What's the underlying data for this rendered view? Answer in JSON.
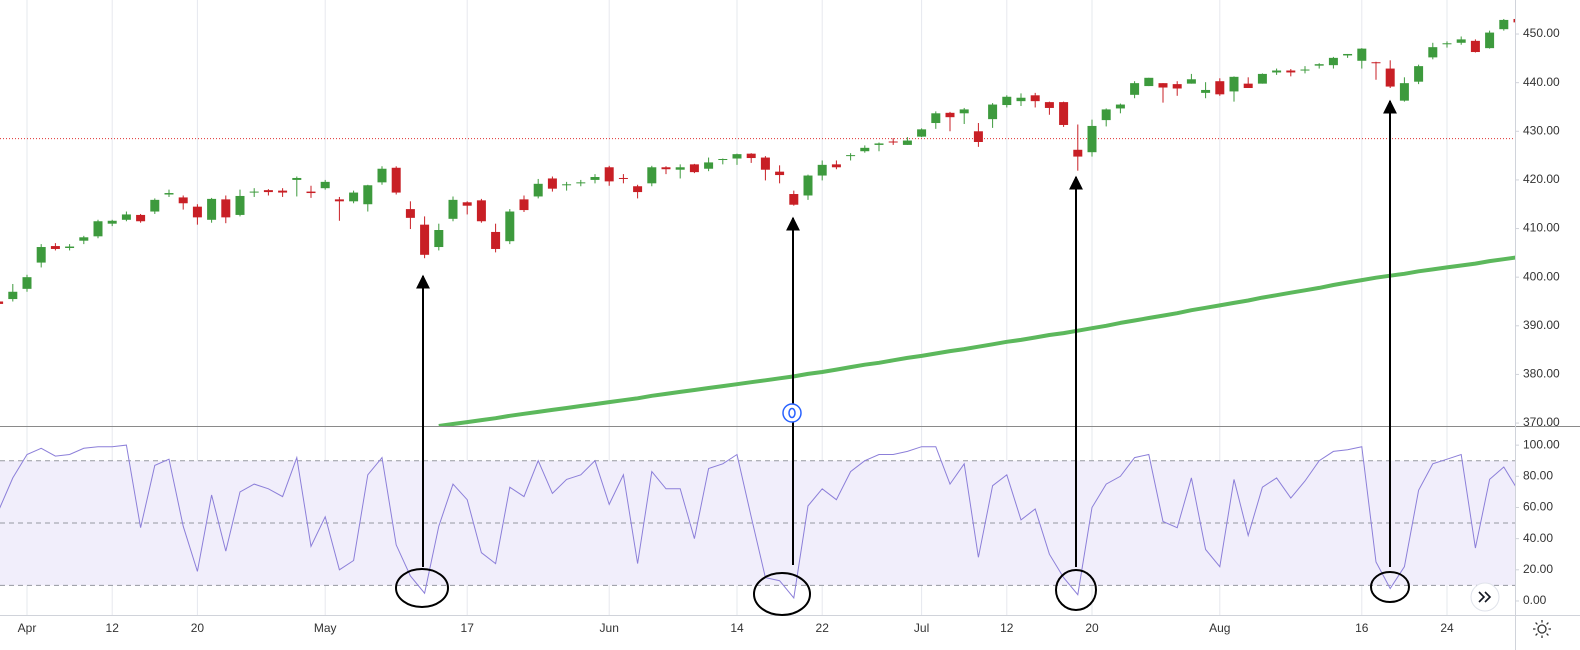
{
  "chart_data": [
    {
      "type": "candlestick",
      "categories": [
        null,
        null,
        "Apr",
        null,
        null,
        null,
        null,
        null,
        "12",
        null,
        null,
        null,
        null,
        null,
        "20",
        null,
        null,
        null,
        null,
        null,
        null,
        null,
        null,
        "May",
        null,
        null,
        null,
        null,
        null,
        null,
        null,
        null,
        null,
        "17",
        null,
        null,
        null,
        null,
        null,
        null,
        null,
        null,
        null,
        "Jun",
        null,
        null,
        null,
        null,
        null,
        null,
        null,
        null,
        "14",
        null,
        null,
        null,
        null,
        null,
        "22",
        null,
        null,
        null,
        null,
        null,
        null,
        "Jul",
        null,
        null,
        null,
        null,
        null,
        "12",
        null,
        null,
        null,
        null,
        null,
        "20",
        null,
        null,
        null,
        null,
        null,
        null,
        null,
        null,
        "Aug",
        null,
        null,
        null,
        null,
        null,
        null,
        null,
        null,
        null,
        "16",
        null,
        null,
        null,
        null,
        null,
        "24",
        null,
        null,
        null,
        null,
        null
      ],
      "open": [
        395,
        395.5,
        397.6,
        403,
        406.4,
        406,
        407.5,
        408.4,
        411,
        411.8,
        412.8,
        413.5,
        417,
        416.4,
        414.5,
        411.8,
        416,
        412.8,
        417.4,
        417.9,
        417.8,
        420,
        417.6,
        418.3,
        416,
        415.6,
        415,
        419.5,
        422.5,
        414,
        410.8,
        406.2,
        412,
        415.4,
        415.8,
        409.3,
        407.4,
        416,
        416.6,
        420.3,
        418.9,
        419.3,
        420,
        422.6,
        420.4,
        418.7,
        419.3,
        422.6,
        422.1,
        423.2,
        422.3,
        424.2,
        424.4,
        425.4,
        424.6,
        421.7,
        417.1,
        416.8,
        420.9,
        423.2,
        424.9,
        425.9,
        427.2,
        427.9,
        427.2,
        428.9,
        431.7,
        433.8,
        433.7,
        430,
        432.5,
        435.4,
        436.2,
        437.4,
        436,
        436,
        426.2,
        425.7,
        432.3,
        434.7,
        437.5,
        439.3,
        439.9,
        439.7,
        439.8,
        437.9,
        440.3,
        438.2,
        439.8,
        439.8,
        442.1,
        442.5,
        442.6,
        443.5,
        443.6,
        445.6,
        444.5,
        444.2,
        442.9,
        436.3,
        440.2,
        445.2,
        447.9,
        448.2,
        448.6,
        447.1,
        451,
        453.1
      ],
      "high": [
        395.5,
        398.6,
        400.5,
        406.8,
        407,
        406.8,
        408.5,
        411.8,
        411.8,
        413.5,
        413,
        416.2,
        418,
        416.8,
        415,
        416.3,
        416.8,
        418,
        418.3,
        418.1,
        418.3,
        420.7,
        418.8,
        420,
        416.5,
        417.8,
        419,
        422.8,
        422.8,
        415.6,
        412.5,
        411,
        416.6,
        415.6,
        416.1,
        411,
        414,
        416.8,
        420.2,
        420.7,
        419.6,
        420,
        421.2,
        422.9,
        421.2,
        419,
        422.9,
        422.8,
        423.2,
        423.3,
        424.6,
        424.4,
        425.4,
        425.5,
        424.9,
        423,
        417.8,
        421.1,
        424,
        424,
        425.5,
        427.1,
        427.7,
        428.6,
        428.8,
        430.6,
        434.1,
        434,
        434.8,
        431.7,
        435.8,
        437.4,
        437.8,
        437.9,
        436.1,
        436.1,
        431.4,
        432.4,
        434.7,
        435.7,
        440.3,
        441,
        439.9,
        440.3,
        441.8,
        440.1,
        440.9,
        441.3,
        441.1,
        441.9,
        442.9,
        442.8,
        443.4,
        444,
        445.3,
        445.9,
        447.1,
        444.3,
        444.6,
        441.1,
        443.7,
        448.2,
        448.5,
        449.5,
        448.9,
        450.7,
        453.1,
        453.2
      ],
      "low": [
        394,
        395,
        397,
        402,
        405.5,
        405.5,
        406.8,
        408,
        410.5,
        411.5,
        411.2,
        413,
        416.5,
        413.9,
        410.8,
        411.2,
        411.1,
        412.5,
        416.5,
        416.8,
        416.5,
        416.6,
        416.3,
        418,
        411.6,
        415.2,
        413.5,
        419,
        417,
        409.9,
        403.9,
        405.5,
        411.5,
        412.9,
        411.2,
        405.1,
        406.8,
        413.4,
        416.2,
        417.6,
        417.8,
        418.7,
        419.3,
        418.8,
        419.3,
        416.2,
        418.7,
        421.2,
        420.3,
        421.4,
        421.8,
        423.2,
        423.1,
        423.5,
        419.9,
        419.3,
        414.7,
        415.9,
        419.9,
        422.2,
        424,
        425.6,
        425.9,
        427.2,
        427.2,
        428.8,
        430.5,
        430,
        431.5,
        426.8,
        430.7,
        434.9,
        435.2,
        434.9,
        433.4,
        430.9,
        421.9,
        424.8,
        431,
        433.7,
        436.8,
        439.3,
        435.9,
        437.3,
        439.8,
        436.8,
        437.3,
        436.1,
        438.9,
        439.8,
        441.6,
        441.3,
        441.9,
        442.9,
        442.9,
        445.1,
        442.9,
        440.6,
        438.9,
        436.1,
        439.7,
        444.8,
        447.2,
        447.8,
        446.2,
        447,
        450.7,
        451.4
      ],
      "close": [
        394.5,
        397,
        400,
        406.2,
        405.8,
        406.3,
        408.2,
        411.5,
        411.6,
        412.9,
        411.5,
        415.9,
        417.3,
        415.2,
        412.3,
        416.1,
        412.3,
        416.7,
        417.6,
        417.5,
        417.4,
        420.4,
        417.3,
        419.6,
        415.6,
        417.4,
        418.9,
        422.3,
        417.4,
        412.2,
        404.6,
        409.7,
        415.9,
        414.7,
        411.5,
        405.8,
        413.5,
        413.8,
        419.2,
        418.2,
        419.1,
        419.5,
        420.6,
        419.7,
        420.3,
        417.5,
        422.6,
        422.2,
        422.6,
        421.6,
        423.6,
        424.3,
        425.3,
        424.5,
        422.1,
        421,
        414.9,
        420.9,
        423.1,
        422.6,
        425.1,
        426.6,
        427.5,
        427.7,
        428.1,
        430.4,
        433.7,
        432.9,
        434.5,
        427.8,
        435.5,
        437.1,
        436.9,
        436.2,
        434.8,
        431.3,
        424.8,
        431.1,
        434.5,
        435.5,
        439.9,
        441,
        439,
        438.8,
        440.7,
        438.5,
        437.6,
        441.2,
        438.9,
        441.8,
        442.5,
        442.1,
        442.7,
        443.8,
        445.1,
        445.9,
        447,
        444,
        439.2,
        439.9,
        443.4,
        447.3,
        448.1,
        448.9,
        446.3,
        450.3,
        452.9,
        452.4
      ],
      "up_color": "#3d9a3d",
      "down_color": "#c81f25",
      "overlay": {
        "type": "line",
        "color": "#5cb85c",
        "values": [
          null,
          null,
          null,
          null,
          null,
          null,
          null,
          null,
          null,
          null,
          null,
          null,
          null,
          null,
          null,
          null,
          null,
          null,
          null,
          null,
          null,
          null,
          null,
          null,
          null,
          null,
          null,
          null,
          null,
          null,
          null,
          369.4,
          369.8,
          370.2,
          370.6,
          371.0,
          371.5,
          371.9,
          372.3,
          372.7,
          373.1,
          373.5,
          373.9,
          374.3,
          374.7,
          375.1,
          375.6,
          376.0,
          376.4,
          376.8,
          377.2,
          377.6,
          378.0,
          378.4,
          378.8,
          379.2,
          379.6,
          380.1,
          380.5,
          381.0,
          381.5,
          382.0,
          382.4,
          382.9,
          383.4,
          383.8,
          384.3,
          384.8,
          385.2,
          385.7,
          386.2,
          386.7,
          387.1,
          387.6,
          388.1,
          388.5,
          389.0,
          389.5,
          390.0,
          390.6,
          391.1,
          391.6,
          392.1,
          392.6,
          393.2,
          393.7,
          394.2,
          394.7,
          395.2,
          395.8,
          396.3,
          396.8,
          397.3,
          397.8,
          398.4,
          398.9,
          399.4,
          399.9,
          400.3,
          400.7,
          401.2,
          401.6,
          402.0,
          402.4,
          402.8,
          403.3,
          403.7,
          404.1
        ]
      },
      "price_line": {
        "value": 428.5,
        "color": "#e03030"
      },
      "ylim": [
        369.6,
        457
      ],
      "yticks": [
        {
          "value": 370,
          "label": "370.00"
        },
        {
          "value": 380,
          "label": "380.00"
        },
        {
          "value": 390,
          "label": "390.00"
        },
        {
          "value": 400,
          "label": "400.00"
        },
        {
          "value": 410,
          "label": "410.00"
        },
        {
          "value": 420,
          "label": "420.00"
        },
        {
          "value": 430,
          "label": "430.00"
        },
        {
          "value": 440,
          "label": "440.00"
        },
        {
          "value": 450,
          "label": "450.00"
        }
      ]
    },
    {
      "type": "line",
      "color": "#8c7fd9",
      "values": [
        58,
        79,
        94,
        98,
        93,
        94,
        98,
        99,
        99,
        100,
        47,
        87,
        91,
        48,
        19,
        68,
        32,
        70,
        75,
        72,
        67,
        92,
        35,
        54,
        20,
        26,
        81,
        92,
        36,
        16,
        5,
        48,
        75,
        65,
        31,
        24,
        73,
        67,
        90,
        69,
        78,
        81,
        90,
        62,
        81,
        24,
        83,
        72,
        72,
        40,
        85,
        88,
        94,
        54,
        15,
        13,
        2,
        61,
        72,
        65,
        83,
        90,
        94,
        94,
        96,
        99,
        99,
        75,
        88,
        28,
        74,
        81,
        52,
        59,
        30,
        15,
        4,
        60,
        75,
        80,
        92,
        94,
        51,
        47,
        79,
        33,
        22,
        78,
        42,
        73,
        79,
        66,
        77,
        90,
        96,
        97,
        99,
        25,
        8,
        22,
        71,
        88,
        91,
        94,
        34,
        78,
        86,
        71
      ],
      "bands": [
        90,
        50,
        10
      ],
      "band_fill": "#f1eefb",
      "ylim": [
        -9,
        111
      ],
      "yticks": [
        {
          "value": 0,
          "label": "0.00"
        },
        {
          "value": 20,
          "label": "20.00"
        },
        {
          "value": 40,
          "label": "40.00"
        },
        {
          "value": 60,
          "label": "60.00"
        },
        {
          "value": 80,
          "label": "80.00"
        },
        {
          "value": 100,
          "label": "100.00"
        }
      ]
    }
  ]
}
